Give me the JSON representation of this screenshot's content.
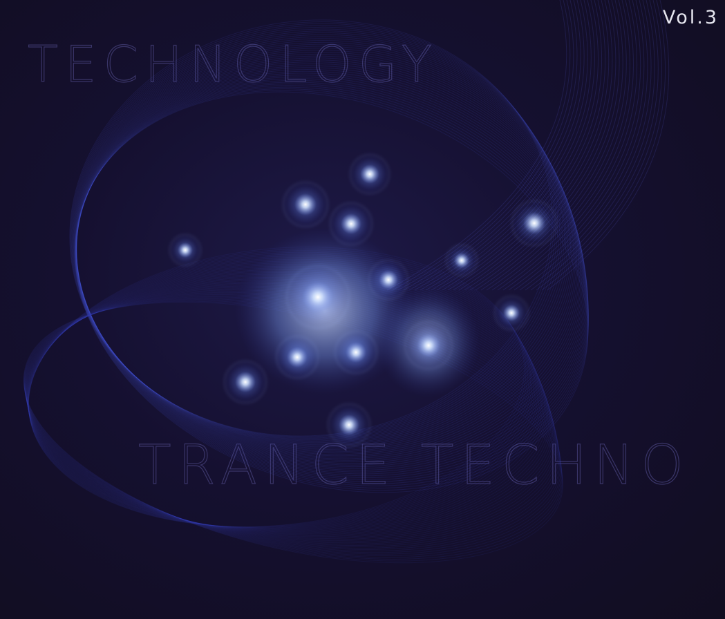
{
  "cover": {
    "volume": "Vol.3",
    "upper_text": "TECHNOLOGY",
    "lower_text": "TRANCE TECHNO"
  }
}
